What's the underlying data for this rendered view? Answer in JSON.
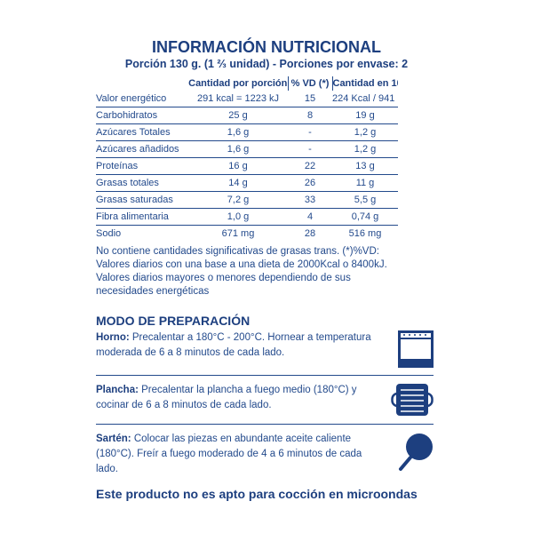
{
  "title": "INFORMACIÓN NUTRICIONAL",
  "subtitle": "Porción 130 g. (1 ⅔ unidad) - Porciones por envase: 2",
  "table": {
    "headers": [
      "",
      "Cantidad por porción",
      "% VD (*)",
      "Cantidad en 100g"
    ],
    "rows": [
      [
        "Valor energético",
        "291 kcal = 1223 kJ",
        "15",
        "224 Kcal / 941 kJ"
      ],
      [
        "Carbohidratos",
        "25 g",
        "8",
        "19 g"
      ],
      [
        "Azúcares Totales",
        "1,6 g",
        "-",
        "1,2 g"
      ],
      [
        "Azúcares añadidos",
        "1,6 g",
        "-",
        "1,2 g"
      ],
      [
        "Proteínas",
        "16 g",
        "22",
        "13 g"
      ],
      [
        "Grasas totales",
        "14 g",
        "26",
        "11 g"
      ],
      [
        "Grasas saturadas",
        "7,2 g",
        "33",
        "5,5 g"
      ],
      [
        "Fibra alimentaria",
        "1,0 g",
        "4",
        "0,74 g"
      ],
      [
        "Sodio",
        "671 mg",
        "28",
        "516 mg"
      ]
    ]
  },
  "notes": "No contiene cantidades significativas de grasas trans. (*)%VD: Valores diarios con una base a una dieta de 2000Kcal o 8400kJ. Valores diarios mayores o menores dependiendo de sus necesidades energéticas",
  "prep": {
    "title": "MODO DE PREPARACIÓN",
    "steps": [
      {
        "label": "Horno:",
        "text": " Precalentar a 180°C - 200°C. Hornear a temperatura moderada de  6 a 8 minutos de cada lado.",
        "icon": "oven-icon"
      },
      {
        "label": "Plancha:",
        "text": " Precalentar la plancha a fuego medio (180°C) y cocinar de 6 a 8 minutos de cada lado.",
        "icon": "griddle-icon"
      },
      {
        "label": "Sartén:",
        "text": " Colocar las piezas en abundante aceite caliente (180°C). Freír a fuego moderado de 4 a 6 minutos de cada lado.",
        "icon": "frying-pan-icon"
      }
    ]
  },
  "footer": "Este producto no es apto para cocción en microondas",
  "colors": {
    "primary": "#1d3f7f"
  }
}
